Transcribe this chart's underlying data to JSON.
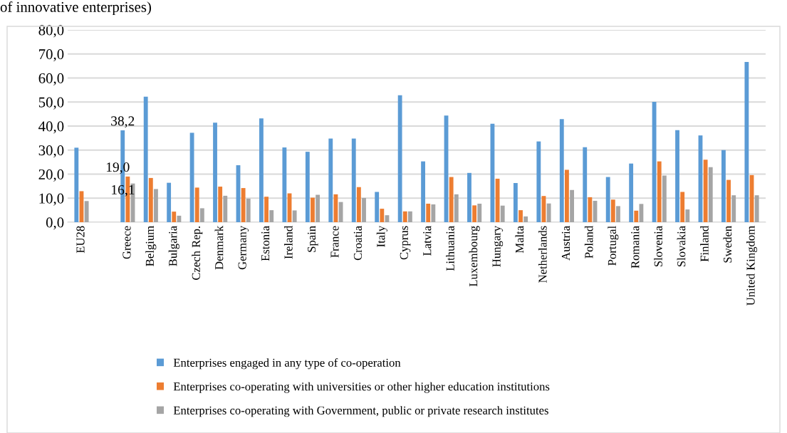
{
  "chart_data": {
    "type": "bar",
    "title": "of innovative enterprises)",
    "categories": [
      "EU28",
      null,
      "Greece",
      "Belgium",
      "Bulgaria",
      "Czech Rep.",
      "Denmark",
      "Germany",
      "Estonia",
      "Ireland",
      "Spain",
      "France",
      "Croatia",
      "Italy",
      "Cyprus",
      "Latvia",
      "Lithuania",
      "Luxembourg",
      "Hungary",
      "Malta",
      "Netherlands",
      "Austria",
      "Poland",
      "Portugal",
      "Romania",
      "Slovenia",
      "Slovakia",
      "Finland",
      "Sweden",
      "United Kingdom"
    ],
    "series": [
      {
        "name": "Enterprises engaged in any type of co-operation",
        "color": "#5b9bd5",
        "values": [
          31.0,
          null,
          38.2,
          52.2,
          16.4,
          37.2,
          41.4,
          23.7,
          43.2,
          31.1,
          29.3,
          34.8,
          34.8,
          12.6,
          52.8,
          25.3,
          44.4,
          20.5,
          41.0,
          16.3,
          33.6,
          42.9,
          31.2,
          18.8,
          24.4,
          50.1,
          38.3,
          36.1,
          30.0,
          66.7
        ],
        "value_labels": [
          null,
          null,
          "38,2",
          null,
          null,
          null,
          null,
          null,
          null,
          null,
          null,
          null,
          null,
          null,
          null,
          null,
          null,
          null,
          null,
          null,
          null,
          null,
          null,
          null,
          null,
          null,
          null,
          null,
          null,
          null
        ]
      },
      {
        "name": "Enterprises co-operating with universities or other higher education institutions",
        "color": "#ed7d31",
        "values": [
          12.9,
          null,
          19.0,
          18.4,
          4.4,
          14.4,
          14.8,
          14.2,
          10.6,
          12.0,
          10.2,
          11.6,
          14.6,
          5.6,
          4.5,
          7.7,
          18.8,
          7.0,
          18.1,
          5.0,
          10.9,
          21.8,
          10.4,
          9.4,
          4.8,
          25.3,
          12.6,
          26.0,
          17.6,
          19.6
        ],
        "value_labels": [
          null,
          null,
          "19,0",
          null,
          null,
          null,
          null,
          null,
          null,
          null,
          null,
          null,
          null,
          null,
          null,
          null,
          null,
          null,
          null,
          null,
          null,
          null,
          null,
          null,
          null,
          null,
          null,
          null,
          null,
          null
        ]
      },
      {
        "name": "Enterprises co-operating with Government, public or private research institutes",
        "color": "#a5a5a5",
        "values": [
          8.8,
          null,
          16.1,
          13.8,
          2.7,
          5.8,
          11.0,
          9.8,
          5.0,
          4.9,
          11.4,
          8.4,
          10.1,
          2.9,
          4.5,
          7.4,
          11.6,
          7.7,
          6.9,
          2.4,
          7.8,
          13.4,
          8.9,
          6.7,
          7.6,
          19.4,
          5.3,
          22.9,
          11.2,
          11.2
        ],
        "value_labels": [
          null,
          null,
          "16,1",
          null,
          null,
          null,
          null,
          null,
          null,
          null,
          null,
          null,
          null,
          null,
          null,
          null,
          null,
          null,
          null,
          null,
          null,
          null,
          null,
          null,
          null,
          null,
          null,
          null,
          null,
          null
        ]
      }
    ],
    "ylim": [
      0,
      80
    ],
    "yticks": [
      {
        "value": 0,
        "label": "0,0"
      },
      {
        "value": 10,
        "label": "10,0"
      },
      {
        "value": 20,
        "label": "20,0"
      },
      {
        "value": 30,
        "label": "30,0"
      },
      {
        "value": 40,
        "label": "40,0"
      },
      {
        "value": 50,
        "label": "50,0"
      },
      {
        "value": 60,
        "label": "60,0"
      },
      {
        "value": 70,
        "label": "70,0"
      },
      {
        "value": 80,
        "label": "80,0"
      }
    ],
    "grid": "y",
    "legend": "bottom"
  }
}
